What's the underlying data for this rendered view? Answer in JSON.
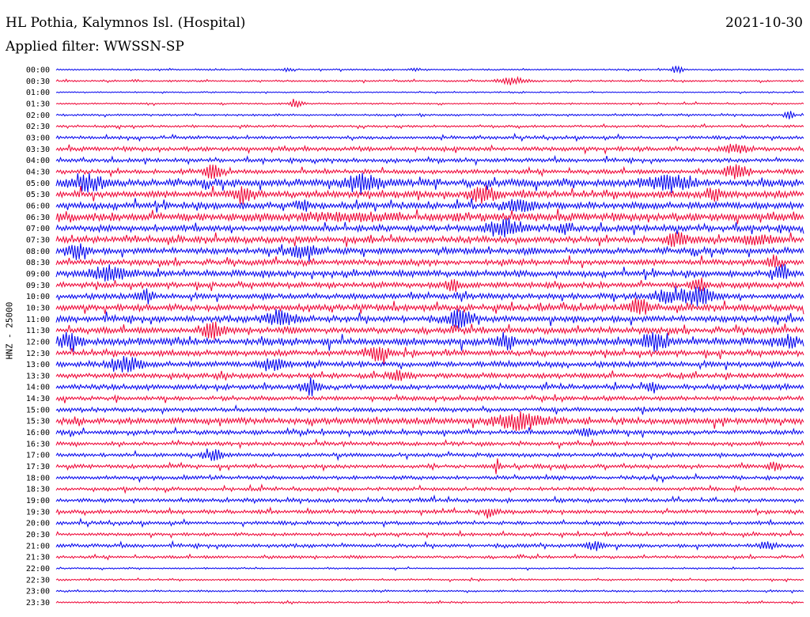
{
  "header": {
    "station": "HL Pothia, Kalymnos Isl. (Hospital)",
    "date": "2021-10-30",
    "filter": "Applied filter: WWSSN-SP"
  },
  "channel_label": "HNZ - 25000",
  "colors": {
    "even_row": "#0000ee",
    "odd_row": "#ee0033"
  },
  "chart_data": {
    "type": "line",
    "y_ticks": [
      "00:00",
      "00:30",
      "01:00",
      "01:30",
      "02:00",
      "02:30",
      "03:00",
      "03:30",
      "04:00",
      "04:30",
      "05:00",
      "05:30",
      "06:00",
      "06:30",
      "07:00",
      "07:30",
      "08:00",
      "08:30",
      "09:00",
      "09:30",
      "10:00",
      "10:30",
      "11:00",
      "11:30",
      "12:00",
      "12:30",
      "13:00",
      "13:30",
      "14:00",
      "14:30",
      "15:00",
      "15:30",
      "16:00",
      "16:30",
      "17:00",
      "17:30",
      "18:00",
      "18:30",
      "19:00",
      "19:30",
      "20:00",
      "20:30",
      "21:00",
      "21:30",
      "22:00",
      "22:30",
      "23:00",
      "23:30"
    ],
    "row_noise": [
      0.12,
      0.14,
      0.1,
      0.12,
      0.16,
      0.18,
      0.25,
      0.35,
      0.3,
      0.35,
      0.6,
      0.55,
      0.55,
      0.65,
      0.5,
      0.5,
      0.5,
      0.45,
      0.5,
      0.45,
      0.45,
      0.5,
      0.5,
      0.5,
      0.6,
      0.45,
      0.45,
      0.4,
      0.4,
      0.35,
      0.35,
      0.5,
      0.35,
      0.3,
      0.3,
      0.3,
      0.3,
      0.28,
      0.3,
      0.3,
      0.28,
      0.25,
      0.28,
      0.22,
      0.12,
      0.14,
      0.15,
      0.14
    ],
    "events": [
      {
        "row": 0,
        "t": 0.31,
        "amp": 0.5,
        "width": 0.006
      },
      {
        "row": 0,
        "t": 0.48,
        "amp": 0.5,
        "width": 0.006
      },
      {
        "row": 0,
        "t": 0.83,
        "amp": 0.6,
        "width": 0.008
      },
      {
        "row": 1,
        "t": 0.61,
        "amp": 0.7,
        "width": 0.02
      },
      {
        "row": 3,
        "t": 0.32,
        "amp": 0.7,
        "width": 0.01
      },
      {
        "row": 4,
        "t": 0.98,
        "amp": 0.8,
        "width": 0.006
      },
      {
        "row": 7,
        "t": 0.91,
        "amp": 0.9,
        "width": 0.015
      },
      {
        "row": 9,
        "t": 0.21,
        "amp": 1.4,
        "width": 0.01
      },
      {
        "row": 9,
        "t": 0.91,
        "amp": 1.3,
        "width": 0.015
      },
      {
        "row": 10,
        "t": 0.04,
        "amp": 1.5,
        "width": 0.025
      },
      {
        "row": 10,
        "t": 0.41,
        "amp": 1.5,
        "width": 0.025
      },
      {
        "row": 10,
        "t": 0.82,
        "amp": 1.2,
        "width": 0.03
      },
      {
        "row": 11,
        "t": 0.25,
        "amp": 1.6,
        "width": 0.012
      },
      {
        "row": 11,
        "t": 0.57,
        "amp": 1.6,
        "width": 0.015
      },
      {
        "row": 11,
        "t": 0.88,
        "amp": 1.2,
        "width": 0.01
      },
      {
        "row": 12,
        "t": 0.33,
        "amp": 1.3,
        "width": 0.006
      },
      {
        "row": 12,
        "t": 0.62,
        "amp": 1.0,
        "width": 0.02
      },
      {
        "row": 14,
        "t": 0.6,
        "amp": 1.6,
        "width": 0.025
      },
      {
        "row": 14,
        "t": 0.68,
        "amp": 0.9,
        "width": 0.008
      },
      {
        "row": 15,
        "t": 0.83,
        "amp": 1.1,
        "width": 0.015
      },
      {
        "row": 15,
        "t": 0.94,
        "amp": 0.8,
        "width": 0.025
      },
      {
        "row": 16,
        "t": 0.03,
        "amp": 1.7,
        "width": 0.012
      },
      {
        "row": 16,
        "t": 0.33,
        "amp": 1.4,
        "width": 0.02
      },
      {
        "row": 17,
        "t": 0.96,
        "amp": 1.2,
        "width": 0.01
      },
      {
        "row": 18,
        "t": 0.07,
        "amp": 1.3,
        "width": 0.025
      },
      {
        "row": 18,
        "t": 0.97,
        "amp": 1.3,
        "width": 0.012
      },
      {
        "row": 19,
        "t": 0.53,
        "amp": 1.0,
        "width": 0.01
      },
      {
        "row": 19,
        "t": 0.86,
        "amp": 1.4,
        "width": 0.01
      },
      {
        "row": 20,
        "t": 0.12,
        "amp": 1.3,
        "width": 0.01
      },
      {
        "row": 20,
        "t": 0.82,
        "amp": 1.5,
        "width": 0.02
      },
      {
        "row": 20,
        "t": 0.86,
        "amp": 1.6,
        "width": 0.02
      },
      {
        "row": 21,
        "t": 0.78,
        "amp": 1.3,
        "width": 0.015
      },
      {
        "row": 22,
        "t": 0.3,
        "amp": 1.4,
        "width": 0.02
      },
      {
        "row": 22,
        "t": 0.54,
        "amp": 1.6,
        "width": 0.015
      },
      {
        "row": 23,
        "t": 0.21,
        "amp": 1.6,
        "width": 0.012
      },
      {
        "row": 24,
        "t": 0.02,
        "amp": 1.3,
        "width": 0.015
      },
      {
        "row": 24,
        "t": 0.6,
        "amp": 1.3,
        "width": 0.012
      },
      {
        "row": 24,
        "t": 0.8,
        "amp": 1.5,
        "width": 0.015
      },
      {
        "row": 24,
        "t": 0.98,
        "amp": 1.2,
        "width": 0.01
      },
      {
        "row": 25,
        "t": 0.43,
        "amp": 1.6,
        "width": 0.015
      },
      {
        "row": 26,
        "t": 0.09,
        "amp": 1.5,
        "width": 0.02
      },
      {
        "row": 26,
        "t": 0.29,
        "amp": 1.3,
        "width": 0.015
      },
      {
        "row": 27,
        "t": 0.46,
        "amp": 0.8,
        "width": 0.015
      },
      {
        "row": 28,
        "t": 0.34,
        "amp": 1.4,
        "width": 0.012
      },
      {
        "row": 28,
        "t": 0.8,
        "amp": 1.0,
        "width": 0.008
      },
      {
        "row": 31,
        "t": 0.62,
        "amp": 1.6,
        "width": 0.03
      },
      {
        "row": 32,
        "t": 0.71,
        "amp": 0.8,
        "width": 0.01
      },
      {
        "row": 34,
        "t": 0.21,
        "amp": 1.1,
        "width": 0.012
      },
      {
        "row": 35,
        "t": 0.59,
        "amp": 1.3,
        "width": 0.005
      },
      {
        "row": 35,
        "t": 0.96,
        "amp": 0.8,
        "width": 0.01
      },
      {
        "row": 39,
        "t": 0.58,
        "amp": 0.8,
        "width": 0.01
      },
      {
        "row": 42,
        "t": 0.72,
        "amp": 0.9,
        "width": 0.012
      },
      {
        "row": 42,
        "t": 0.95,
        "amp": 0.8,
        "width": 0.012
      }
    ],
    "bursts": [
      {
        "row": 13,
        "from": 0.33,
        "to": 0.46,
        "amp": 0.95
      },
      {
        "row": 20,
        "from": 0.83,
        "to": 0.88,
        "amp": 1.1
      }
    ]
  }
}
